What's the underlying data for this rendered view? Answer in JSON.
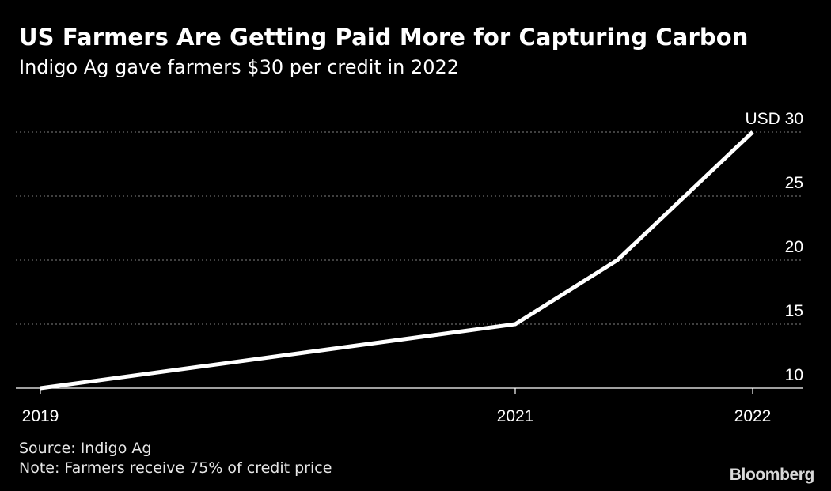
{
  "colors": {
    "background": "#000000",
    "line": "#ffffff",
    "grid": "#808080",
    "text": "#ffffff"
  },
  "chart_data": {
    "type": "line",
    "title": "US Farmers Are Getting Paid More for Capturing Carbon",
    "subtitle": "Indigo Ag gave farmers $30 per credit in 2022",
    "x": [
      "2019",
      "2021",
      "2021-07",
      "2022"
    ],
    "x_positions_years": [
      2019,
      2021,
      2021.43,
      2022
    ],
    "series": [
      {
        "values": [
          10,
          15,
          20,
          30
        ]
      }
    ],
    "xticks": [
      {
        "label": "2019",
        "value": 2019
      },
      {
        "label": "2021",
        "value": 2021
      },
      {
        "label": "2022",
        "value": 2022
      }
    ],
    "yticks": [
      {
        "label": "10",
        "value": 10
      },
      {
        "label": "15",
        "value": 15
      },
      {
        "label": "20",
        "value": 20
      },
      {
        "label": "25",
        "value": 25
      },
      {
        "label": "USD 30",
        "value": 30
      }
    ],
    "ylim": [
      10,
      30
    ],
    "xlim": [
      2019,
      2022
    ],
    "y_axis_position": "right",
    "grid": "horizontal dotted",
    "xlabel": "",
    "ylabel": ""
  },
  "footer": {
    "source": "Source: Indigo Ag",
    "note": "Note: Farmers receive 75% of credit price",
    "brand": "Bloomberg"
  }
}
